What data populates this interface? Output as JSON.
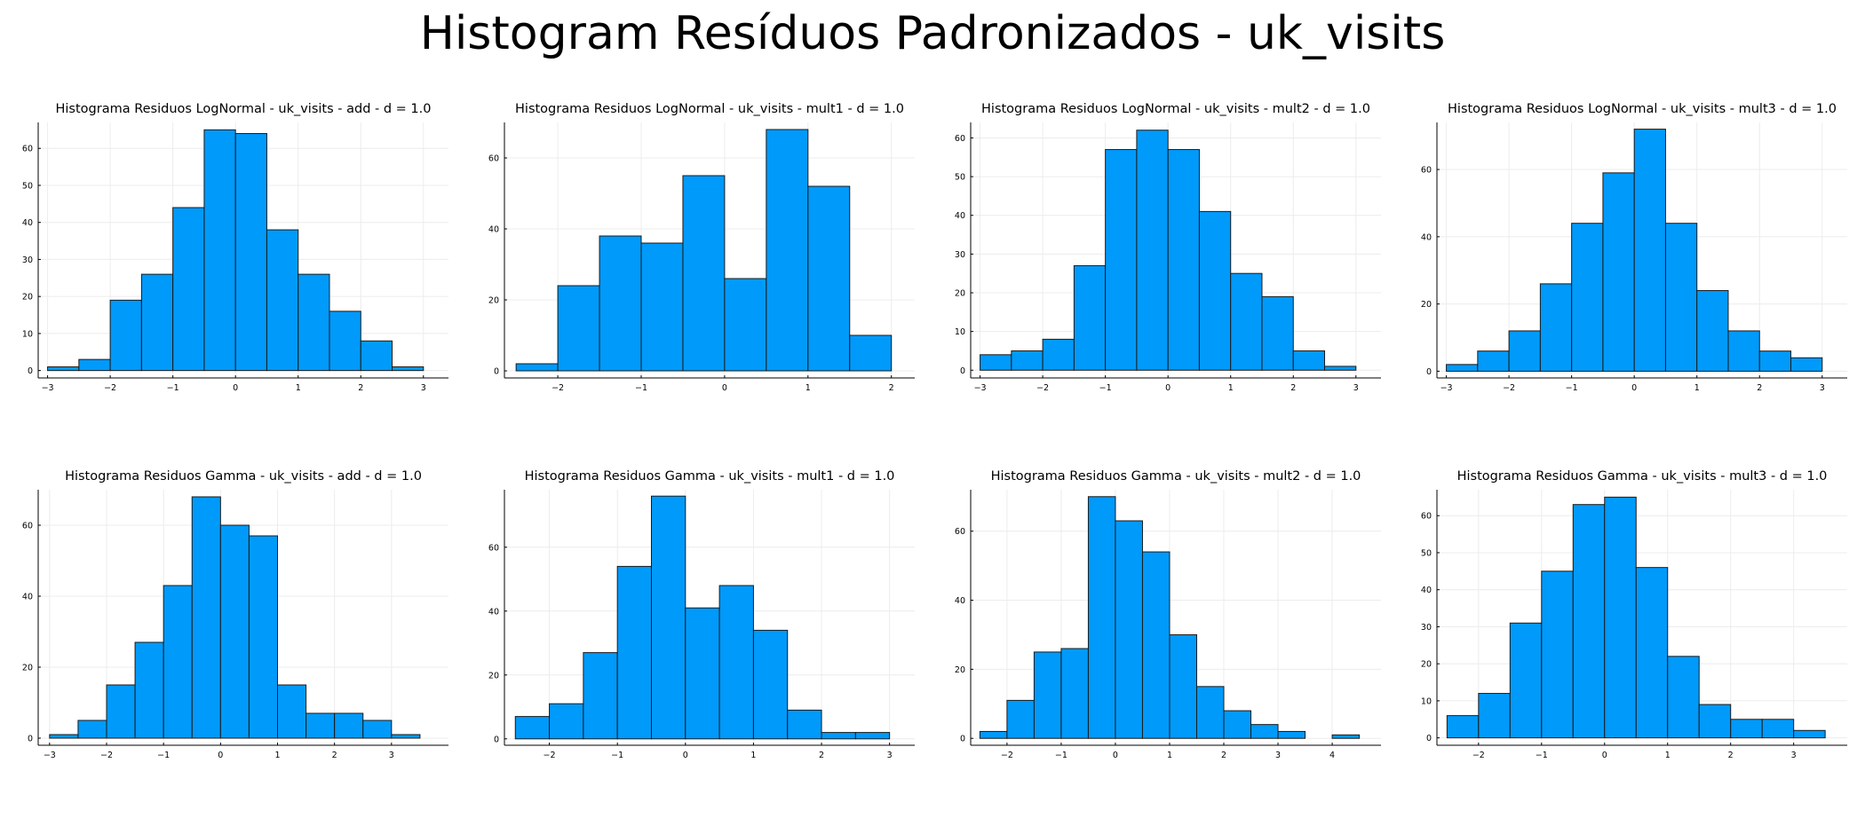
{
  "figure": {
    "title": "Histogram Resíduos Padronizados - uk_visits"
  },
  "chart_data": [
    {
      "type": "bar",
      "title": "Histograma Residuos LogNormal - uk_visits - add - d = 1.0",
      "bin_edges": [
        -3,
        -2.5,
        -2,
        -1.5,
        -1,
        -0.5,
        0,
        0.5,
        1,
        1.5,
        2,
        2.5,
        3
      ],
      "counts": [
        1,
        3,
        19,
        26,
        44,
        65,
        64,
        38,
        26,
        16,
        8,
        1
      ],
      "xlim": [
        -3.15,
        3.4
      ],
      "ylim": [
        -2,
        67
      ],
      "xticks": [
        -3,
        -2,
        -1,
        0,
        1,
        2,
        3
      ],
      "xtick_labels": [
        "−3",
        "−2",
        "−1",
        "0",
        "1",
        "2",
        "3"
      ],
      "yticks": [
        0,
        10,
        20,
        30,
        40,
        50,
        60
      ],
      "ytick_labels": [
        "0",
        "10",
        "20",
        "30",
        "40",
        "50",
        "60"
      ],
      "grid": true,
      "legend": false
    },
    {
      "type": "bar",
      "title": "Histograma Residuos LogNormal - uk_visits - mult1 - d = 1.0",
      "bin_edges": [
        -2.5,
        -2,
        -1.5,
        -1,
        -0.5,
        0,
        0.5,
        1,
        1.5,
        2
      ],
      "counts": [
        2,
        24,
        38,
        36,
        55,
        26,
        68,
        52,
        10
      ],
      "xlim": [
        -2.64,
        2.28
      ],
      "ylim": [
        -2,
        70
      ],
      "xticks": [
        -2,
        -1,
        0,
        1,
        2
      ],
      "xtick_labels": [
        "−2",
        "−1",
        "0",
        "1",
        "2"
      ],
      "yticks": [
        0,
        20,
        40,
        60
      ],
      "ytick_labels": [
        "0",
        "20",
        "40",
        "60"
      ],
      "grid": true,
      "legend": false
    },
    {
      "type": "bar",
      "title": "Histograma Residuos LogNormal - uk_visits - mult2 - d = 1.0",
      "bin_edges": [
        -3,
        -2.5,
        -2,
        -1.5,
        -1,
        -0.5,
        0,
        0.5,
        1,
        1.5,
        2,
        2.5,
        3
      ],
      "counts": [
        4,
        5,
        8,
        27,
        57,
        62,
        57,
        41,
        25,
        19,
        5,
        1
      ],
      "xlim": [
        -3.15,
        3.4
      ],
      "ylim": [
        -2,
        64
      ],
      "xticks": [
        -3,
        -2,
        -1,
        0,
        1,
        2,
        3
      ],
      "xtick_labels": [
        "−3",
        "−2",
        "−1",
        "0",
        "1",
        "2",
        "3"
      ],
      "yticks": [
        0,
        10,
        20,
        30,
        40,
        50,
        60
      ],
      "ytick_labels": [
        "0",
        "10",
        "20",
        "30",
        "40",
        "50",
        "60"
      ],
      "grid": true,
      "legend": false
    },
    {
      "type": "bar",
      "title": "Histograma Residuos LogNormal - uk_visits - mult3 - d = 1.0",
      "bin_edges": [
        -3,
        -2.5,
        -2,
        -1.5,
        -1,
        -0.5,
        0,
        0.5,
        1,
        1.5,
        2,
        2.5,
        3
      ],
      "counts": [
        2,
        6,
        12,
        26,
        44,
        59,
        72,
        44,
        24,
        12,
        6,
        4
      ],
      "xlim": [
        -3.15,
        3.4
      ],
      "ylim": [
        -2,
        74
      ],
      "xticks": [
        -3,
        -2,
        -1,
        0,
        1,
        2,
        3
      ],
      "xtick_labels": [
        "−3",
        "−2",
        "−1",
        "0",
        "1",
        "2",
        "3"
      ],
      "yticks": [
        0,
        20,
        40,
        60
      ],
      "ytick_labels": [
        "0",
        "20",
        "40",
        "60"
      ],
      "grid": true,
      "legend": false
    },
    {
      "type": "bar",
      "title": "Histograma Residuos Gamma - uk_visits - add - d = 1.0",
      "bin_edges": [
        -3,
        -2.5,
        -2,
        -1.5,
        -1,
        -0.5,
        0,
        0.5,
        1,
        1.5,
        2,
        2.5,
        3,
        3.5
      ],
      "counts": [
        1,
        5,
        15,
        27,
        43,
        68,
        60,
        57,
        15,
        7,
        7,
        5,
        1
      ],
      "xlim": [
        -3.2,
        4.0
      ],
      "ylim": [
        -2,
        70
      ],
      "xticks": [
        -3,
        -2,
        -1,
        0,
        1,
        2,
        3
      ],
      "xtick_labels": [
        "−3",
        "−2",
        "−1",
        "0",
        "1",
        "2",
        "3"
      ],
      "yticks": [
        0,
        20,
        40,
        60
      ],
      "ytick_labels": [
        "0",
        "20",
        "40",
        "60"
      ],
      "grid": true,
      "legend": false
    },
    {
      "type": "bar",
      "title": "Histograma Residuos Gamma - uk_visits - mult1 - d = 1.0",
      "bin_edges": [
        -2.5,
        -2,
        -1.5,
        -1,
        -0.5,
        0,
        0.5,
        1,
        1.5,
        2,
        2.5,
        3
      ],
      "counts": [
        7,
        11,
        27,
        54,
        76,
        41,
        48,
        34,
        9,
        2,
        2
      ],
      "xlim": [
        -2.66,
        3.37
      ],
      "ylim": [
        -2,
        78
      ],
      "xticks": [
        -2,
        -1,
        0,
        1,
        2,
        3
      ],
      "xtick_labels": [
        "−2",
        "−1",
        "0",
        "1",
        "2",
        "3"
      ],
      "yticks": [
        0,
        20,
        40,
        60
      ],
      "ytick_labels": [
        "0",
        "20",
        "40",
        "60"
      ],
      "grid": true,
      "legend": false
    },
    {
      "type": "bar",
      "title": "Histograma Residuos Gamma - uk_visits - mult2 - d = 1.0",
      "bin_edges": [
        -2.5,
        -2,
        -1.5,
        -1,
        -0.5,
        0,
        0.5,
        1,
        1.5,
        2,
        2.5,
        3,
        3.5,
        4,
        4.5
      ],
      "counts": [
        2,
        11,
        25,
        26,
        70,
        63,
        54,
        30,
        15,
        8,
        4,
        2,
        0,
        1
      ],
      "xlim": [
        -2.67,
        4.9
      ],
      "ylim": [
        -2,
        72
      ],
      "xticks": [
        -2,
        -1,
        0,
        1,
        2,
        3,
        4
      ],
      "xtick_labels": [
        "−2",
        "−1",
        "0",
        "1",
        "2",
        "3",
        "4"
      ],
      "yticks": [
        0,
        20,
        40,
        60
      ],
      "ytick_labels": [
        "0",
        "20",
        "40",
        "60"
      ],
      "grid": true,
      "legend": false
    },
    {
      "type": "bar",
      "title": "Histograma Residuos Gamma - uk_visits - mult3 - d = 1.0",
      "bin_edges": [
        -2.5,
        -2,
        -1.5,
        -1,
        -0.5,
        0,
        0.5,
        1,
        1.5,
        2,
        2.5,
        3,
        3.5
      ],
      "counts": [
        6,
        12,
        31,
        45,
        63,
        65,
        46,
        22,
        9,
        5,
        5,
        2
      ],
      "xlim": [
        -2.66,
        3.85
      ],
      "ylim": [
        -2,
        67
      ],
      "xticks": [
        -2,
        -1,
        0,
        1,
        2,
        3
      ],
      "xtick_labels": [
        "−2",
        "−1",
        "0",
        "1",
        "2",
        "3"
      ],
      "yticks": [
        0,
        10,
        20,
        30,
        40,
        50,
        60
      ],
      "ytick_labels": [
        "0",
        "10",
        "20",
        "30",
        "40",
        "50",
        "60"
      ],
      "grid": true,
      "legend": false
    }
  ]
}
